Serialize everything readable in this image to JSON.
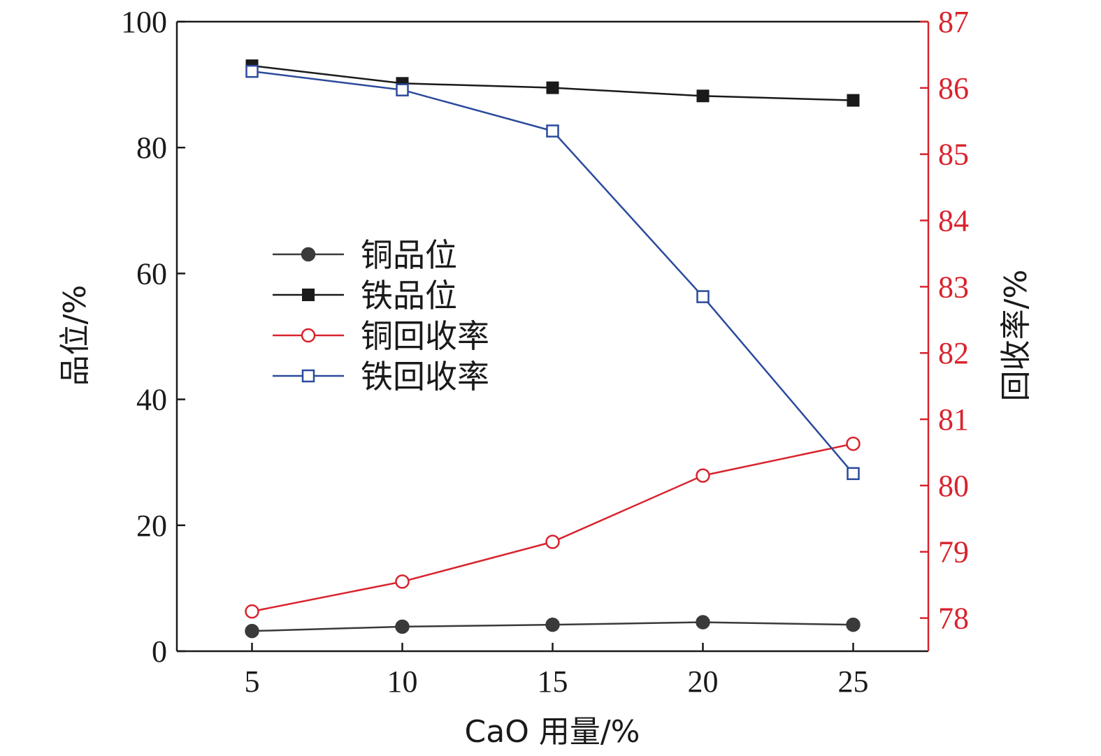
{
  "chart_data": {
    "type": "line",
    "x": [
      5,
      10,
      15,
      20,
      25
    ],
    "xlabel": "CaO 用量/%",
    "ylabel_left": "品位/%",
    "ylabel_right": "回收率/%",
    "xlim": [
      2.5,
      27.5
    ],
    "ylim_left": [
      0,
      100
    ],
    "ylim_right": [
      77.5,
      87
    ],
    "x_ticks": [
      5,
      10,
      15,
      20,
      25
    ],
    "y_ticks_left": [
      0,
      20,
      40,
      60,
      80,
      100
    ],
    "y_ticks_right": [
      78,
      79,
      80,
      81,
      82,
      83,
      84,
      85,
      86,
      87
    ],
    "legend_position": "center-left",
    "grid": false,
    "series": [
      {
        "name": "铜品位",
        "axis": "left",
        "values": [
          3.2,
          3.9,
          4.2,
          4.6,
          4.2
        ],
        "color": "#3a3a3a",
        "marker": "circle-filled"
      },
      {
        "name": "铁品位",
        "axis": "left",
        "values": [
          93.0,
          90.2,
          89.5,
          88.2,
          87.5
        ],
        "color": "#1a1a1a",
        "marker": "square-filled"
      },
      {
        "name": "铜回收率",
        "axis": "right",
        "values": [
          78.1,
          78.55,
          79.15,
          80.15,
          80.63
        ],
        "color": "#d9232d",
        "marker": "circle-open"
      },
      {
        "name": "铁回收率",
        "axis": "right",
        "values": [
          86.25,
          85.97,
          85.35,
          82.85,
          80.18
        ],
        "color": "#2b4a9c",
        "marker": "square-open"
      }
    ]
  }
}
